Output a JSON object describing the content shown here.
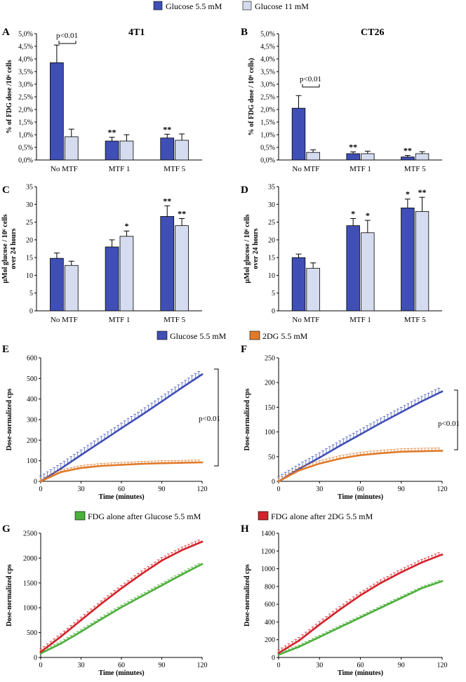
{
  "colors": {
    "glucose55": "#3f4fb5",
    "glucose11": "#d6dcef",
    "dg": "#e07a2a",
    "fdg_glucose": "#4caf3a",
    "fdg_2dg": "#d2232a"
  },
  "legends": {
    "top": [
      "Glucose 5.5 mM",
      "Glucose 11 mM"
    ],
    "middle": [
      "Glucose 5.5 mM",
      "2DG 5.5 mM"
    ],
    "bottom": [
      "FDG alone after Glucose 5.5 mM",
      "FDG alone after 2DG 5.5 mM"
    ]
  },
  "panels": {
    "A": {
      "letter": "A",
      "title": "4T1",
      "annotation": "p<0.01"
    },
    "B": {
      "letter": "B",
      "title": "CT26",
      "annotation": "p<0.01"
    },
    "C": {
      "letter": "C"
    },
    "D": {
      "letter": "D"
    },
    "E": {
      "letter": "E",
      "annotation": "p<0.01"
    },
    "F": {
      "letter": "F",
      "annotation": "p<0.01"
    },
    "G": {
      "letter": "G"
    },
    "H": {
      "letter": "H"
    }
  },
  "chart_data": [
    {
      "id": "A",
      "type": "bar",
      "title": "4T1",
      "categories": [
        "No MTF",
        "MTF 1",
        "MTF 5"
      ],
      "series": [
        {
          "name": "Glucose 5.5 mM",
          "values": [
            3.85,
            0.75,
            0.87
          ],
          "errors": [
            0.7,
            0.15,
            0.15
          ],
          "sig": [
            "",
            "**",
            "**"
          ]
        },
        {
          "name": "Glucose 11 mM",
          "values": [
            0.92,
            0.75,
            0.78
          ],
          "errors": [
            0.3,
            0.25,
            0.25
          ],
          "sig": [
            "",
            "",
            ""
          ]
        }
      ],
      "ylabel": "% of FDG dose /10⁶ cells",
      "ylim": [
        0,
        5
      ],
      "yticks": [
        "0,0%",
        "0,5%",
        "1,0%",
        "1,5%",
        "2,0%",
        "2,5%",
        "3,0%",
        "3,5%",
        "4,0%",
        "4,5%",
        "5,0%"
      ]
    },
    {
      "id": "B",
      "type": "bar",
      "title": "CT26",
      "categories": [
        "No MTF",
        "MTF 1",
        "MTF 5"
      ],
      "series": [
        {
          "name": "Glucose 5.5 mM",
          "values": [
            2.05,
            0.25,
            0.12
          ],
          "errors": [
            0.5,
            0.07,
            0.06
          ],
          "sig": [
            "",
            "**",
            "**"
          ]
        },
        {
          "name": "Glucose 11 mM",
          "values": [
            0.3,
            0.25,
            0.25
          ],
          "errors": [
            0.1,
            0.1,
            0.08
          ],
          "sig": [
            "",
            "",
            ""
          ]
        }
      ],
      "ylabel": "% of FDG dose / 10⁶ cells)",
      "ylim": [
        0,
        5
      ],
      "yticks": [
        "0,0%",
        "0,5%",
        "1,0%",
        "1,5%",
        "2,0%",
        "2,5%",
        "3,0%",
        "3,5%",
        "4,0%",
        "4,5%",
        "5,0%"
      ]
    },
    {
      "id": "C",
      "type": "bar",
      "categories": [
        "No MTF",
        "MTF 1",
        "MTF 5"
      ],
      "series": [
        {
          "name": "Glucose 5.5 mM",
          "values": [
            14.8,
            18,
            26.6
          ],
          "errors": [
            1.5,
            2,
            3
          ],
          "sig": [
            "",
            "",
            "**"
          ]
        },
        {
          "name": "Glucose 11 mM",
          "values": [
            12.8,
            21,
            24
          ],
          "errors": [
            1.2,
            1.5,
            2
          ],
          "sig": [
            "",
            "*",
            "**"
          ]
        }
      ],
      "ylabel": "µMol glucose / 10⁶ cells over 24 hours",
      "ylim": [
        0,
        35
      ],
      "yticks": [
        "0",
        "5",
        "10",
        "15",
        "20",
        "25",
        "30",
        "35"
      ]
    },
    {
      "id": "D",
      "type": "bar",
      "categories": [
        "No MTF",
        "MTF 1",
        "MTF 5"
      ],
      "series": [
        {
          "name": "Glucose 5.5 mM",
          "values": [
            15,
            24,
            29
          ],
          "errors": [
            1,
            2,
            2.5
          ],
          "sig": [
            "",
            "*",
            "*"
          ]
        },
        {
          "name": "Glucose 11 mM",
          "values": [
            12,
            22,
            28
          ],
          "errors": [
            1.5,
            3.5,
            4
          ],
          "sig": [
            "",
            "*",
            "**"
          ]
        }
      ],
      "ylabel": "µMol glucose / 10⁶ cells over 24 hours",
      "ylim": [
        0,
        35
      ],
      "yticks": [
        "0",
        "5",
        "10",
        "15",
        "20",
        "25",
        "30",
        "35"
      ]
    },
    {
      "id": "E",
      "type": "line",
      "xlabel": "Time (minutes)",
      "ylabel": "Dose-normalized cps",
      "xlim": [
        0,
        120
      ],
      "ylim": [
        0,
        600
      ],
      "xticks": [
        "0",
        "30",
        "60",
        "90",
        "120"
      ],
      "yticks": [
        "0",
        "100",
        "200",
        "300",
        "400",
        "500",
        "600"
      ],
      "series": [
        {
          "name": "Glucose 5.5 mM",
          "x": [
            0,
            15,
            30,
            45,
            60,
            75,
            90,
            105,
            120
          ],
          "y": [
            0,
            62,
            128,
            193,
            258,
            322,
            388,
            455,
            520
          ],
          "err": 25
        },
        {
          "name": "2DG 5.5 mM",
          "x": [
            0,
            15,
            30,
            45,
            60,
            75,
            90,
            105,
            120
          ],
          "y": [
            0,
            45,
            65,
            75,
            80,
            85,
            88,
            90,
            92
          ],
          "err": 12
        }
      ]
    },
    {
      "id": "F",
      "type": "line",
      "xlabel": "Time (minutes)",
      "ylabel": "Dose-normalized cps",
      "xlim": [
        0,
        120
      ],
      "ylim": [
        0,
        250
      ],
      "xticks": [
        "0",
        "30",
        "60",
        "90",
        "120"
      ],
      "yticks": [
        "0",
        "50",
        "100",
        "150",
        "200",
        "250"
      ],
      "series": [
        {
          "name": "Glucose 5.5 mM",
          "x": [
            0,
            15,
            30,
            45,
            60,
            75,
            90,
            105,
            120
          ],
          "y": [
            0,
            25,
            48,
            72,
            95,
            118,
            140,
            162,
            182
          ],
          "err": 10
        },
        {
          "name": "2DG 5.5 mM",
          "x": [
            0,
            15,
            30,
            45,
            60,
            75,
            90,
            105,
            120
          ],
          "y": [
            0,
            22,
            36,
            46,
            53,
            57,
            60,
            61,
            62
          ],
          "err": 6
        }
      ]
    },
    {
      "id": "G",
      "type": "line",
      "xlabel": "Time (minutes)",
      "ylabel": "Dose-normalized cps",
      "xlim": [
        0,
        120
      ],
      "ylim": [
        0,
        2500
      ],
      "xticks": [
        "0",
        "30",
        "60",
        "90",
        "120"
      ],
      "yticks": [
        "0",
        "500",
        "1000",
        "1500",
        "2000",
        "2500"
      ],
      "series": [
        {
          "name": "FDG alone after Glucose 5.5 mM",
          "x": [
            0,
            15,
            30,
            45,
            60,
            75,
            90,
            105,
            120
          ],
          "y": [
            80,
            280,
            520,
            770,
            1010,
            1230,
            1450,
            1670,
            1880
          ],
          "err": 45
        },
        {
          "name": "FDG alone after 2DG 5.5 mM",
          "x": [
            0,
            15,
            30,
            45,
            60,
            75,
            90,
            105,
            120
          ],
          "y": [
            110,
            420,
            750,
            1080,
            1390,
            1680,
            1950,
            2160,
            2330
          ],
          "err": 60
        }
      ]
    },
    {
      "id": "H",
      "type": "line",
      "xlabel": "Time (minutes)",
      "ylabel": "Dose-normalized cps",
      "xlim": [
        0,
        120
      ],
      "ylim": [
        0,
        1400
      ],
      "xticks": [
        "0",
        "30",
        "60",
        "90",
        "120"
      ],
      "yticks": [
        "0",
        "200",
        "400",
        "600",
        "800",
        "1000",
        "1200",
        "1400"
      ],
      "series": [
        {
          "name": "FDG alone after Glucose 5.5 mM",
          "x": [
            0,
            15,
            30,
            45,
            60,
            75,
            90,
            105,
            120
          ],
          "y": [
            30,
            120,
            230,
            340,
            450,
            560,
            670,
            780,
            860
          ],
          "err": 20
        },
        {
          "name": "FDG alone after 2DG 5.5 mM",
          "x": [
            0,
            15,
            30,
            45,
            60,
            75,
            90,
            105,
            120
          ],
          "y": [
            50,
            190,
            370,
            540,
            700,
            840,
            960,
            1070,
            1160
          ],
          "err": 35
        }
      ]
    }
  ]
}
